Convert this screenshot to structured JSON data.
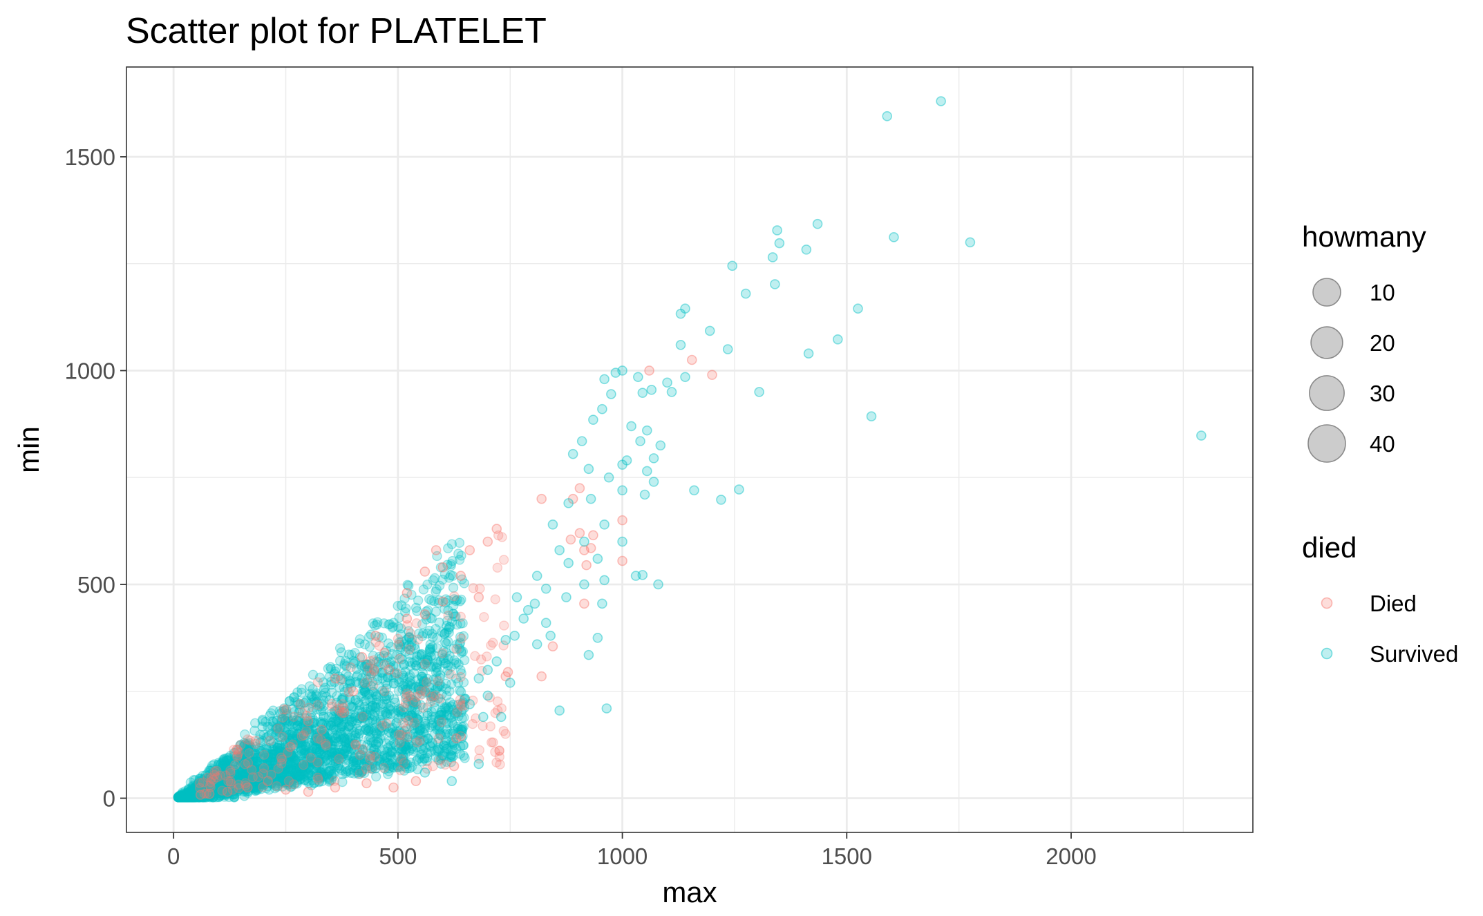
{
  "chart_data": {
    "type": "scatter",
    "title": "Scatter plot for PLATELET",
    "xlabel": "max",
    "ylabel": "min",
    "xlim": [
      -105,
      2405
    ],
    "ylim": [
      -80,
      1710
    ],
    "x_ticks": [
      0,
      500,
      1000,
      1500,
      2000
    ],
    "y_ticks": [
      0,
      500,
      1000,
      1500
    ],
    "x_tick_labels": [
      "0",
      "500",
      "1000",
      "1500",
      "2000"
    ],
    "y_tick_labels": [
      "0",
      "500",
      "1000",
      "1500"
    ],
    "grid": true,
    "point_alpha": 0.25,
    "legend_position": "right",
    "size_legend": {
      "title": "howmany",
      "entries": [
        {
          "label": "10",
          "value": 10
        },
        {
          "label": "20",
          "value": 20
        },
        {
          "label": "30",
          "value": 30
        },
        {
          "label": "40",
          "value": 40
        }
      ],
      "color": "#7f7f7f"
    },
    "color_legend": {
      "title": "died",
      "entries": [
        {
          "label": "Died",
          "color": "#F8766D"
        },
        {
          "label": "Survived",
          "color": "#00BFC4"
        }
      ]
    },
    "series": [
      {
        "name": "Survived",
        "color": "#00BFC4",
        "points": [
          [
            1710,
            1630
          ],
          [
            1590,
            1595
          ],
          [
            1345,
            1328
          ],
          [
            1435,
            1343
          ],
          [
            1605,
            1312
          ],
          [
            1775,
            1300
          ],
          [
            1350,
            1298
          ],
          [
            1410,
            1283
          ],
          [
            1335,
            1265
          ],
          [
            1245,
            1245
          ],
          [
            1340,
            1202
          ],
          [
            1275,
            1180
          ],
          [
            1525,
            1145
          ],
          [
            1140,
            1145
          ],
          [
            1130,
            1133
          ],
          [
            1195,
            1093
          ],
          [
            1480,
            1073
          ],
          [
            1130,
            1060
          ],
          [
            1235,
            1050
          ],
          [
            1415,
            1040
          ],
          [
            1305,
            950
          ],
          [
            1555,
            893
          ],
          [
            2290,
            848
          ],
          [
            1160,
            720
          ],
          [
            1260,
            722
          ],
          [
            1220,
            698
          ],
          [
            1080,
            500
          ],
          [
            1045,
            522
          ],
          [
            965,
            210
          ],
          [
            860,
            205
          ],
          [
            1000,
            1000
          ],
          [
            985,
            995
          ],
          [
            1035,
            985
          ],
          [
            1140,
            985
          ],
          [
            1100,
            972
          ],
          [
            1110,
            950
          ],
          [
            1065,
            955
          ],
          [
            1045,
            948
          ],
          [
            960,
            980
          ],
          [
            975,
            945
          ],
          [
            1040,
            835
          ],
          [
            1070,
            795
          ],
          [
            1010,
            790
          ],
          [
            1055,
            765
          ],
          [
            1050,
            710
          ],
          [
            1070,
            740
          ],
          [
            1000,
            720
          ],
          [
            1085,
            825
          ],
          [
            1020,
            870
          ],
          [
            1055,
            860
          ],
          [
            955,
            910
          ],
          [
            935,
            885
          ],
          [
            910,
            835
          ],
          [
            890,
            805
          ],
          [
            925,
            770
          ],
          [
            970,
            750
          ],
          [
            1000,
            780
          ],
          [
            930,
            700
          ],
          [
            880,
            690
          ],
          [
            960,
            640
          ],
          [
            915,
            600
          ],
          [
            945,
            560
          ],
          [
            880,
            550
          ],
          [
            915,
            500
          ],
          [
            955,
            455
          ],
          [
            960,
            510
          ],
          [
            1000,
            600
          ],
          [
            1030,
            520
          ],
          [
            945,
            375
          ],
          [
            925,
            335
          ],
          [
            860,
            580
          ],
          [
            845,
            640
          ],
          [
            875,
            470
          ],
          [
            830,
            490
          ],
          [
            810,
            520
          ],
          [
            790,
            440
          ],
          [
            805,
            455
          ],
          [
            765,
            470
          ],
          [
            830,
            410
          ],
          [
            780,
            420
          ],
          [
            760,
            380
          ],
          [
            840,
            380
          ],
          [
            810,
            360
          ],
          [
            740,
            370
          ],
          [
            720,
            320
          ],
          [
            700,
            300
          ],
          [
            680,
            280
          ],
          [
            750,
            270
          ],
          [
            700,
            240
          ],
          [
            660,
            220
          ],
          [
            690,
            190
          ],
          [
            730,
            190
          ],
          [
            640,
            160
          ],
          [
            600,
            100
          ],
          [
            680,
            80
          ],
          [
            620,
            40
          ],
          [
            560,
            60
          ],
          [
            520,
            80
          ],
          [
            450,
            70
          ],
          [
            410,
            60
          ]
        ]
      },
      {
        "name": "Died",
        "color": "#F8766D",
        "points": [
          [
            1060,
            1000
          ],
          [
            1155,
            1025
          ],
          [
            1200,
            990
          ],
          [
            1000,
            650
          ],
          [
            1000,
            555
          ],
          [
            935,
            615
          ],
          [
            905,
            725
          ],
          [
            890,
            700
          ],
          [
            905,
            620
          ],
          [
            885,
            605
          ],
          [
            915,
            580
          ],
          [
            930,
            585
          ],
          [
            920,
            545
          ],
          [
            915,
            455
          ],
          [
            820,
            700
          ],
          [
            845,
            355
          ],
          [
            820,
            285
          ],
          [
            745,
            295
          ],
          [
            740,
            285
          ],
          [
            630,
            140
          ],
          [
            640,
            145
          ],
          [
            625,
            75
          ],
          [
            540,
            40
          ],
          [
            490,
            25
          ],
          [
            430,
            35
          ],
          [
            360,
            25
          ],
          [
            300,
            15
          ],
          [
            250,
            20
          ],
          [
            210,
            40
          ],
          [
            165,
            25
          ],
          [
            120,
            15
          ],
          [
            80,
            10
          ],
          [
            60,
            8
          ],
          [
            585,
            580
          ],
          [
            600,
            540
          ],
          [
            640,
            520
          ],
          [
            660,
            580
          ],
          [
            560,
            530
          ],
          [
            520,
            420
          ],
          [
            470,
            340
          ],
          [
            400,
            250
          ],
          [
            450,
            380
          ],
          [
            520,
            480
          ],
          [
            560,
            430
          ],
          [
            480,
            300
          ],
          [
            380,
            200
          ],
          [
            330,
            160
          ],
          [
            260,
            120
          ],
          [
            300,
            180
          ],
          [
            360,
            280
          ],
          [
            420,
            330
          ],
          [
            600,
            460
          ],
          [
            680,
            470
          ],
          [
            700,
            600
          ],
          [
            720,
            630
          ]
        ]
      }
    ]
  }
}
